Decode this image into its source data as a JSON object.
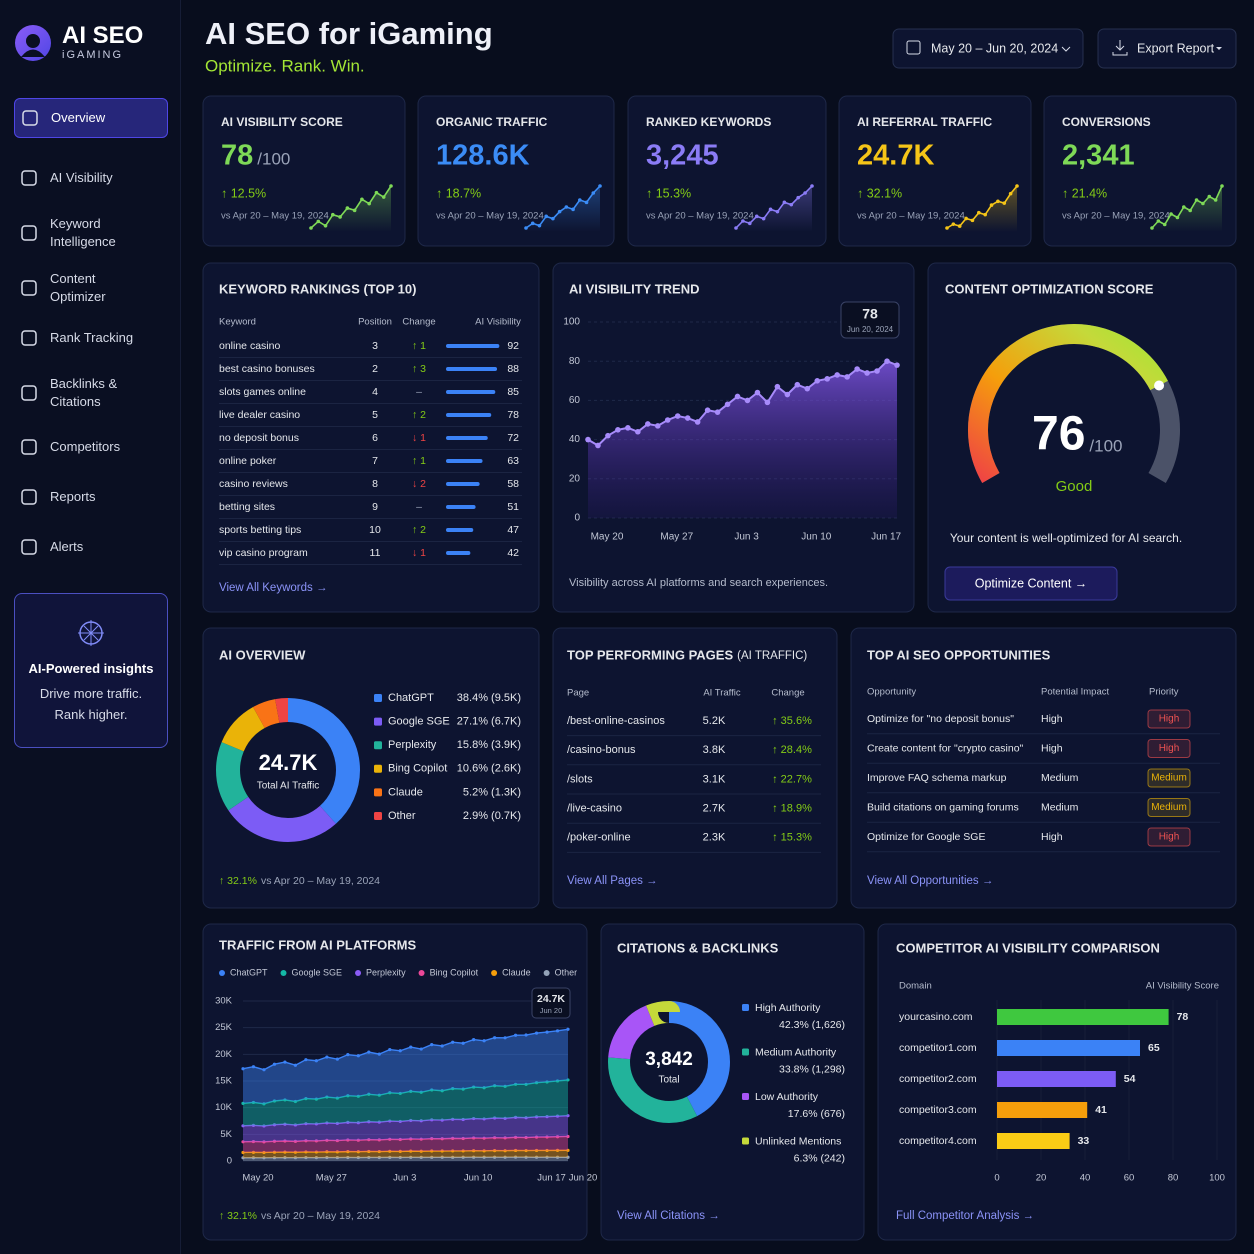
{
  "sidebar": {
    "brand": "AI SEO",
    "brand_sub": "iGAMING",
    "nav": [
      "Overview",
      "AI Visibility",
      "Keyword Intelligence",
      "Content Optimizer",
      "Rank Tracking",
      "Backlinks & Citations",
      "Competitors",
      "Reports",
      "Alerts"
    ],
    "active": 0,
    "insight": {
      "title": "AI-Powered insights",
      "lines": [
        "Drive more traffic.",
        "Rank higher."
      ]
    }
  },
  "header": {
    "title": "AI SEO for iGaming",
    "subtitle": "Optimize. Rank. Win.",
    "date_range": "May 20 – Jun 20, 2024",
    "export": "Export Report"
  },
  "kpis": [
    {
      "label": "AI VISIBILITY SCORE",
      "value": "78",
      "suffix": "/100",
      "change": "↑ 12.5%",
      "compare": "vs Apr 20 – May 19, 2024",
      "color": "#7ed957",
      "spark": [
        30,
        33,
        31,
        36,
        35,
        39,
        38,
        43,
        41,
        46,
        44,
        49
      ]
    },
    {
      "label": "ORGANIC TRAFFIC",
      "value": "128.6K",
      "change": "↑ 18.7%",
      "compare": "vs Apr 20 – May 19, 2024",
      "color": "#3b8cf6",
      "spark": [
        20,
        22,
        21,
        25,
        24,
        27,
        29,
        28,
        32,
        31,
        35,
        38
      ]
    },
    {
      "label": "RANKED KEYWORDS",
      "value": "3,245",
      "change": "↑ 15.3%",
      "compare": "vs Apr 20 – May 19, 2024",
      "color": "#8b7cf6",
      "spark": [
        15,
        18,
        17,
        20,
        19,
        23,
        22,
        26,
        25,
        28,
        30,
        33
      ]
    },
    {
      "label": "AI REFERRAL TRAFFIC",
      "value": "24.7K",
      "change": "↑ 32.1%",
      "compare": "vs Apr 20 – May 19, 2024",
      "color": "#f5c518",
      "spark": [
        10,
        12,
        11,
        15,
        14,
        18,
        17,
        22,
        24,
        23,
        28,
        32
      ]
    },
    {
      "label": "CONVERSIONS",
      "value": "2,341",
      "change": "↑ 21.4%",
      "compare": "vs Apr 20 – May 19, 2024",
      "color": "#7ed957",
      "spark": [
        22,
        24,
        23,
        26,
        25,
        28,
        27,
        30,
        29,
        31,
        30,
        34
      ]
    }
  ],
  "keyword_rankings": {
    "title": "KEYWORD RANKINGS (TOP 10)",
    "columns": [
      "Keyword",
      "Position",
      "Change",
      "AI Visibility"
    ],
    "rows": [
      {
        "keyword": "online casino",
        "position": 3,
        "change": {
          "value": 1,
          "label": "↑ 1"
        },
        "ai_visibility": 92
      },
      {
        "keyword": "best casino bonuses",
        "position": 2,
        "change": {
          "value": 3,
          "label": "↑ 3"
        },
        "ai_visibility": 88
      },
      {
        "keyword": "slots games online",
        "position": 4,
        "change": {
          "value": 0,
          "label": "–"
        },
        "ai_visibility": 85
      },
      {
        "keyword": "live dealer casino",
        "position": 5,
        "change": {
          "value": 2,
          "label": "↑ 2"
        },
        "ai_visibility": 78
      },
      {
        "keyword": "no deposit bonus",
        "position": 6,
        "change": {
          "value": -1,
          "label": "↓ 1"
        },
        "ai_visibility": 72
      },
      {
        "keyword": "online poker",
        "position": 7,
        "change": {
          "value": 1,
          "label": "↑ 1"
        },
        "ai_visibility": 63
      },
      {
        "keyword": "casino reviews",
        "position": 8,
        "change": {
          "value": -2,
          "label": "↓ 2"
        },
        "ai_visibility": 58
      },
      {
        "keyword": "betting sites",
        "position": 9,
        "change": {
          "value": 0,
          "label": "–"
        },
        "ai_visibility": 51
      },
      {
        "keyword": "sports betting tips",
        "position": 10,
        "change": {
          "value": 2,
          "label": "↑ 2"
        },
        "ai_visibility": 47
      },
      {
        "keyword": "vip casino program",
        "position": 11,
        "change": {
          "value": -1,
          "label": "↓ 1"
        },
        "ai_visibility": 42
      }
    ],
    "bar_color": "#3b82f6",
    "range": [
      0,
      100
    ],
    "link": "View All Keywords →"
  },
  "ai_visibility_trend": {
    "type": "area",
    "title": "AI VISIBILITY TREND",
    "categories": [
      "May 20",
      null,
      null,
      null,
      null,
      null,
      null,
      "May 27",
      null,
      null,
      null,
      null,
      null,
      null,
      "Jun 3",
      null,
      null,
      null,
      null,
      null,
      null,
      "Jun 10",
      null,
      null,
      null,
      null,
      null,
      null,
      "Jun 17",
      null,
      null,
      null
    ],
    "values": [
      40,
      37,
      42,
      45,
      46,
      44,
      48,
      47,
      50,
      52,
      51,
      49,
      55,
      54,
      58,
      62,
      60,
      64,
      59,
      67,
      63,
      68,
      66,
      70,
      71,
      73,
      72,
      76,
      74,
      75,
      80,
      78
    ],
    "ylim": [
      0,
      100
    ],
    "yticks": [
      0,
      20,
      40,
      60,
      80,
      100
    ],
    "grid": true,
    "color": "#8b5cf6",
    "tooltip_date": "Jun 20, 2024",
    "caption": "Visibility across AI platforms and search experiences."
  },
  "content_score": {
    "title": "CONTENT OPTIMIZATION SCORE",
    "value": 76,
    "range": [
      0,
      100
    ],
    "max_label": "/100",
    "rating": "Good",
    "description": "Your content is well-optimized for AI search.",
    "button": "Optimize Content →"
  },
  "ai_overview": {
    "type": "donut",
    "title": "AI OVERVIEW",
    "total": "24.7K",
    "total_label": "Total AI Traffic",
    "series": [
      {
        "name": "ChatGPT",
        "color": "#3b82f6",
        "value": 38.4,
        "label": "38.4% (9.5K)"
      },
      {
        "name": "Google SGE",
        "color": "#7c5cf5",
        "value": 27.1,
        "label": "27.1% (6.7K)"
      },
      {
        "name": "Perplexity",
        "color": "#22b39b",
        "value": 15.8,
        "label": "15.8% (3.9K)"
      },
      {
        "name": "Bing Copilot",
        "color": "#eab308",
        "value": 10.6,
        "label": "10.6% (2.6K)"
      },
      {
        "name": "Claude",
        "color": "#f97316",
        "value": 5.2,
        "label": "5.2% (1.3K)"
      },
      {
        "name": "Other",
        "color": "#ef4444",
        "value": 2.9,
        "label": "2.9% (0.7K)"
      }
    ],
    "change": "↑ 32.1%",
    "compare": "vs Apr 20 – May 19, 2024"
  },
  "top_pages": {
    "title": "TOP PERFORMING PAGES",
    "title_note": "(AI TRAFFIC)",
    "columns": [
      "Page",
      "AI Traffic",
      "Change"
    ],
    "rows": [
      {
        "page": "/best-online-casinos",
        "traffic": "5.2K",
        "change": "↑ 35.6%"
      },
      {
        "page": "/casino-bonus",
        "traffic": "3.8K",
        "change": "↑ 28.4%"
      },
      {
        "page": "/slots",
        "traffic": "3.1K",
        "change": "↑ 22.7%"
      },
      {
        "page": "/live-casino",
        "traffic": "2.7K",
        "change": "↑ 18.9%"
      },
      {
        "page": "/poker-online",
        "traffic": "2.3K",
        "change": "↑ 15.3%"
      }
    ],
    "link": "View All Pages →"
  },
  "opportunities": {
    "title": "TOP AI SEO OPPORTUNITIES",
    "columns": [
      "Opportunity",
      "Potential Impact",
      "Priority"
    ],
    "rows": [
      {
        "opportunity": "Optimize for \"no deposit bonus\"",
        "impact": "High",
        "priority": "High"
      },
      {
        "opportunity": "Create content for \"crypto casino\"",
        "impact": "High",
        "priority": "High"
      },
      {
        "opportunity": "Improve FAQ schema markup",
        "impact": "Medium",
        "priority": "Medium"
      },
      {
        "opportunity": "Build citations on gaming forums",
        "impact": "Medium",
        "priority": "Medium"
      },
      {
        "opportunity": "Optimize for Google SGE",
        "impact": "High",
        "priority": "High"
      }
    ],
    "priority_colors": {
      "High": "#f05252",
      "Medium": "#eab308"
    },
    "link": "View All Opportunities →"
  },
  "traffic_platforms": {
    "type": "stacked_area",
    "title": "TRAFFIC FROM AI PLATFORMS",
    "categories": [
      "May 20",
      null,
      null,
      null,
      null,
      null,
      null,
      "May 27",
      null,
      null,
      null,
      null,
      null,
      null,
      "Jun 3",
      null,
      null,
      null,
      null,
      null,
      null,
      "Jun 10",
      null,
      null,
      null,
      null,
      null,
      null,
      "Jun 17",
      null,
      null,
      "Jun 20"
    ],
    "series": [
      {
        "name": "ChatGPT",
        "color": "#3b82f6",
        "values": [
          6500,
          6700,
          6400,
          6900,
          7100,
          6800,
          7300,
          7200,
          7500,
          7300,
          7700,
          7600,
          7900,
          7700,
          8100,
          8000,
          8300,
          8100,
          8500,
          8400,
          8700,
          8600,
          8900,
          8800,
          9000,
          9100,
          9200,
          9250,
          9300,
          9350,
          9400,
          9500
        ]
      },
      {
        "name": "Google SGE",
        "color": "#14b8a6",
        "values": [
          4200,
          4300,
          4150,
          4450,
          4550,
          4400,
          4700,
          4650,
          4850,
          4750,
          5000,
          4950,
          5150,
          5050,
          5300,
          5250,
          5450,
          5350,
          5600,
          5500,
          5750,
          5700,
          5900,
          5850,
          6050,
          6000,
          6200,
          6250,
          6400,
          6500,
          6600,
          6700
        ]
      },
      {
        "name": "Perplexity",
        "color": "#8b5cf6",
        "values": [
          3000,
          3040,
          2980,
          3100,
          3150,
          3080,
          3200,
          3180,
          3260,
          3220,
          3300,
          3280,
          3360,
          3330,
          3420,
          3390,
          3480,
          3450,
          3530,
          3500,
          3580,
          3560,
          3640,
          3610,
          3690,
          3670,
          3740,
          3720,
          3800,
          3820,
          3860,
          3900
        ]
      },
      {
        "name": "Bing Copilot",
        "color": "#ec4899",
        "values": [
          2000,
          2020,
          1990,
          2050,
          2080,
          2040,
          2100,
          2090,
          2150,
          2120,
          2180,
          2160,
          2210,
          2190,
          2250,
          2230,
          2280,
          2260,
          2320,
          2300,
          2350,
          2330,
          2390,
          2370,
          2420,
          2400,
          2460,
          2440,
          2500,
          2520,
          2560,
          2600
        ]
      },
      {
        "name": "Claude",
        "color": "#f59e0b",
        "values": [
          1000,
          1010,
          1000,
          1030,
          1040,
          1020,
          1060,
          1050,
          1080,
          1070,
          1100,
          1090,
          1120,
          1110,
          1140,
          1130,
          1160,
          1150,
          1180,
          1170,
          1200,
          1190,
          1220,
          1210,
          1240,
          1230,
          1260,
          1250,
          1280,
          1270,
          1290,
          1300
        ]
      },
      {
        "name": "Other",
        "color": "#94a3b8",
        "values": [
          600,
          610,
          600,
          620,
          630,
          620,
          640,
          630,
          650,
          640,
          660,
          650,
          670,
          660,
          680,
          670,
          690,
          680,
          690,
          700,
          690,
          700,
          710,
          700,
          710,
          700,
          720,
          710,
          700,
          710,
          700,
          700
        ]
      }
    ],
    "ylim": [
      0,
      30000
    ],
    "yticks": [
      0,
      {
        "value": 5000,
        "label": "5K"
      },
      {
        "value": 10000,
        "label": "10K"
      },
      {
        "value": 15000,
        "label": "15K"
      },
      {
        "value": 20000,
        "label": "20K"
      },
      {
        "value": 25000,
        "label": "25K"
      },
      {
        "value": 30000,
        "label": "30K"
      }
    ],
    "grid": true,
    "tooltip_value": "24.7K",
    "tooltip_date": "Jun 20",
    "change": "↑ 32.1%",
    "compare": "vs Apr 20 – May 19, 2024"
  },
  "citations": {
    "type": "donut",
    "title": "CITATIONS & BACKLINKS",
    "total": "3,842",
    "total_label": "Total",
    "series": [
      {
        "name": "High Authority",
        "color": "#3b82f6",
        "value": 42.3,
        "label": "42.3% (1,626)"
      },
      {
        "name": "Medium Authority",
        "color": "#22b39b",
        "value": 33.8,
        "label": "33.8% (1,298)"
      },
      {
        "name": "Low Authority",
        "color": "#a855f7",
        "value": 17.6,
        "label": "17.6% (676)"
      },
      {
        "name": "Unlinked Mentions",
        "color": "#c5d93a",
        "value": 6.3,
        "label": "6.3% (242)"
      }
    ],
    "link": "View All Citations →"
  },
  "competitors": {
    "type": "bar",
    "orientation": "horizontal",
    "title": "COMPETITOR AI VISIBILITY COMPARISON",
    "columns": [
      "Domain",
      "AI Visibility Score"
    ],
    "categories": [
      "yourcasino.com",
      "competitor1.com",
      "competitor2.com",
      "competitor3.com",
      "competitor4.com"
    ],
    "values": [
      78,
      65,
      54,
      41,
      33
    ],
    "colors": [
      "#3fc83f",
      "#3b82f6",
      "#7c5cf5",
      "#f59e0b",
      "#facc15"
    ],
    "xlim": [
      0,
      100
    ],
    "xticks": [
      0,
      20,
      40,
      60,
      80,
      100
    ],
    "link": "Full Competitor Analysis →"
  }
}
